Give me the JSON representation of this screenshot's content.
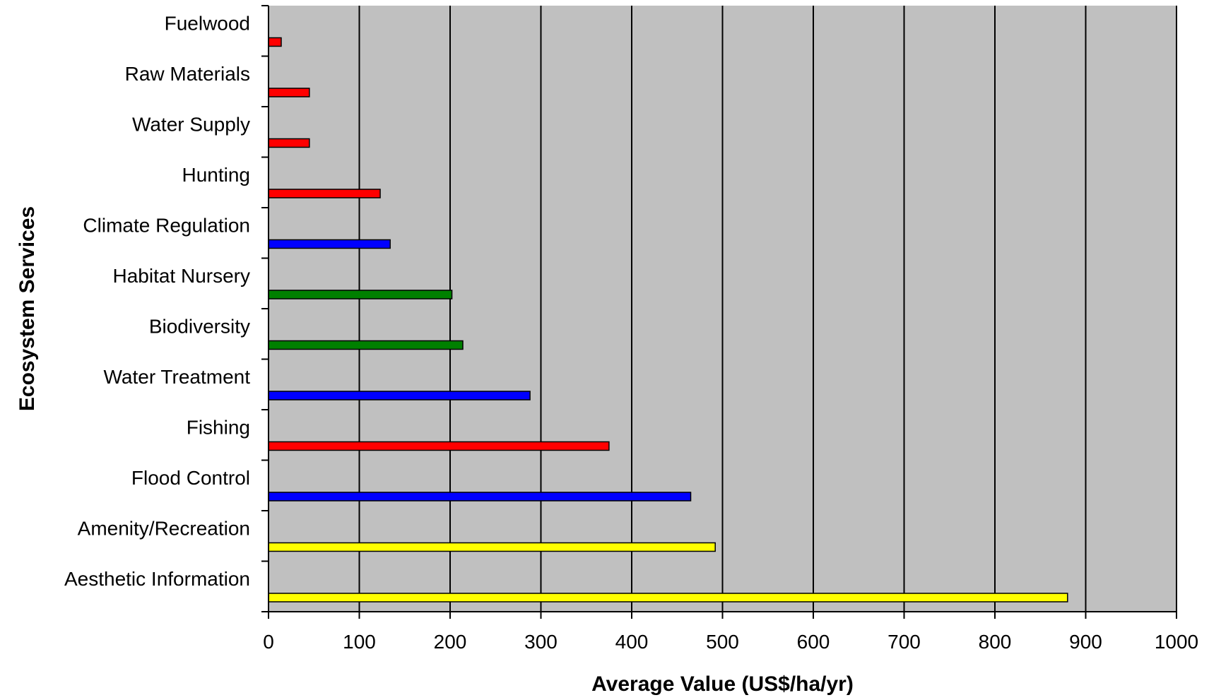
{
  "chart_data": {
    "type": "bar",
    "orientation": "horizontal",
    "title": "",
    "xlabel": "Average Value (US$/ha/yr)",
    "ylabel": "Ecosystem Services",
    "xlim": [
      0,
      1000
    ],
    "x_ticks": [
      "0",
      "100",
      "200",
      "300",
      "400",
      "500",
      "600",
      "700",
      "800",
      "900",
      "1000"
    ],
    "grid": "vertical",
    "legend": "none",
    "categories": [
      "Fuelwood",
      "Raw Materials",
      "Water Supply",
      "Hunting",
      "Climate Regulation",
      "Habitat Nursery",
      "Biodiversity",
      "Water Treatment",
      "Fishing",
      "Flood Control",
      "Amenity/Recreation",
      "Aesthetic Information"
    ],
    "values": [
      14,
      45,
      45,
      123,
      134,
      202,
      214,
      288,
      375,
      465,
      492,
      880
    ],
    "bar_colors": [
      "#ff0000",
      "#ff0000",
      "#ff0000",
      "#ff0000",
      "#0000ff",
      "#008000",
      "#008000",
      "#0000ff",
      "#ff0000",
      "#0000ff",
      "#ffff00",
      "#ffff00"
    ],
    "plot_background": "#c0c0c0"
  }
}
